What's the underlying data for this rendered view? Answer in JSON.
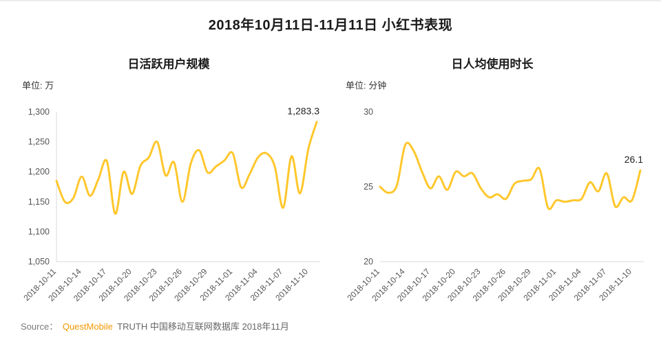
{
  "page": {
    "title": "2018年10月11日-11月11日 小红书表现",
    "source": {
      "prefix": "Source：",
      "brand": "QuestMobile",
      "suffix": "TRUTH 中国移动互联网数据库 2018年11月"
    }
  },
  "colors": {
    "line_yellow": "#FFC72C",
    "brand_orange": "#F39800",
    "axis_gray": "#d9d9d9",
    "tick_text": "#555555"
  },
  "chart_data": [
    {
      "type": "line",
      "title": "日活跃用户规模",
      "unit": "单位: 万",
      "ylabel": "万",
      "x": [
        "2018-10-11",
        "2018-10-12",
        "2018-10-13",
        "2018-10-14",
        "2018-10-15",
        "2018-10-16",
        "2018-10-17",
        "2018-10-18",
        "2018-10-19",
        "2018-10-20",
        "2018-10-21",
        "2018-10-22",
        "2018-10-23",
        "2018-10-24",
        "2018-10-25",
        "2018-10-26",
        "2018-10-27",
        "2018-10-28",
        "2018-10-29",
        "2018-10-30",
        "2018-10-31",
        "2018-11-01",
        "2018-11-02",
        "2018-11-03",
        "2018-11-04",
        "2018-11-05",
        "2018-11-06",
        "2018-11-07",
        "2018-11-08",
        "2018-11-09",
        "2018-11-10",
        "2018-11-11"
      ],
      "values": [
        1185,
        1150,
        1156,
        1192,
        1160,
        1188,
        1218,
        1130,
        1200,
        1163,
        1210,
        1224,
        1250,
        1194,
        1216,
        1150,
        1214,
        1236,
        1199,
        1209,
        1219,
        1231,
        1174,
        1196,
        1224,
        1231,
        1209,
        1140,
        1226,
        1164,
        1238,
        1283.3
      ],
      "ylim": [
        1050,
        1300
      ],
      "yticks": [
        {
          "value": 1300,
          "label": "1,300"
        },
        {
          "value": 1250,
          "label": "1,250"
        },
        {
          "value": 1200,
          "label": "1,200"
        },
        {
          "value": 1150,
          "label": "1,150"
        },
        {
          "value": 1100,
          "label": "1,100"
        },
        {
          "value": 1050,
          "label": "1,050"
        }
      ],
      "xtick_labels": [
        "2018-10-11",
        "2018-10-14",
        "2018-10-17",
        "2018-10-20",
        "2018-10-23",
        "2018-10-26",
        "2018-10-29",
        "2018-11-01",
        "2018-11-04",
        "2018-11-07",
        "2018-11-10"
      ],
      "xtick_step": 3,
      "last_label": "1,283.3",
      "grid": false,
      "legend": "none",
      "y_axis": true,
      "line_color": "#FFC72C"
    },
    {
      "type": "line",
      "title": "日人均使用时长",
      "unit": "单位: 分钟",
      "ylabel": "分钟",
      "x": [
        "2018-10-11",
        "2018-10-12",
        "2018-10-13",
        "2018-10-14",
        "2018-10-15",
        "2018-10-16",
        "2018-10-17",
        "2018-10-18",
        "2018-10-19",
        "2018-10-20",
        "2018-10-21",
        "2018-10-22",
        "2018-10-23",
        "2018-10-24",
        "2018-10-25",
        "2018-10-26",
        "2018-10-27",
        "2018-10-28",
        "2018-10-29",
        "2018-10-30",
        "2018-10-31",
        "2018-11-01",
        "2018-11-02",
        "2018-11-03",
        "2018-11-04",
        "2018-11-05",
        "2018-11-06",
        "2018-11-07",
        "2018-11-08",
        "2018-11-09",
        "2018-11-10",
        "2018-11-11"
      ],
      "values": [
        25.0,
        24.6,
        25.1,
        27.8,
        27.4,
        26.0,
        24.9,
        25.7,
        24.8,
        26.0,
        25.7,
        25.9,
        24.9,
        24.3,
        24.5,
        24.2,
        25.2,
        25.4,
        25.5,
        26.2,
        23.6,
        24.1,
        24.0,
        24.1,
        24.2,
        25.3,
        24.7,
        25.9,
        23.7,
        24.3,
        24.1,
        26.1
      ],
      "ylim": [
        20,
        30
      ],
      "yticks": [
        {
          "value": 30,
          "label": "30"
        },
        {
          "value": 25,
          "label": "25"
        },
        {
          "value": 20,
          "label": "20"
        }
      ],
      "xtick_labels": [
        "2018-10-11",
        "2018-10-14",
        "2018-10-17",
        "2018-10-20",
        "2018-10-23",
        "2018-10-26",
        "2018-10-29",
        "2018-11-01",
        "2018-11-04",
        "2018-11-07",
        "2018-11-10"
      ],
      "xtick_step": 3,
      "last_label": "26.1",
      "grid": false,
      "legend": "none",
      "y_axis": false,
      "line_color": "#FFC72C"
    }
  ]
}
